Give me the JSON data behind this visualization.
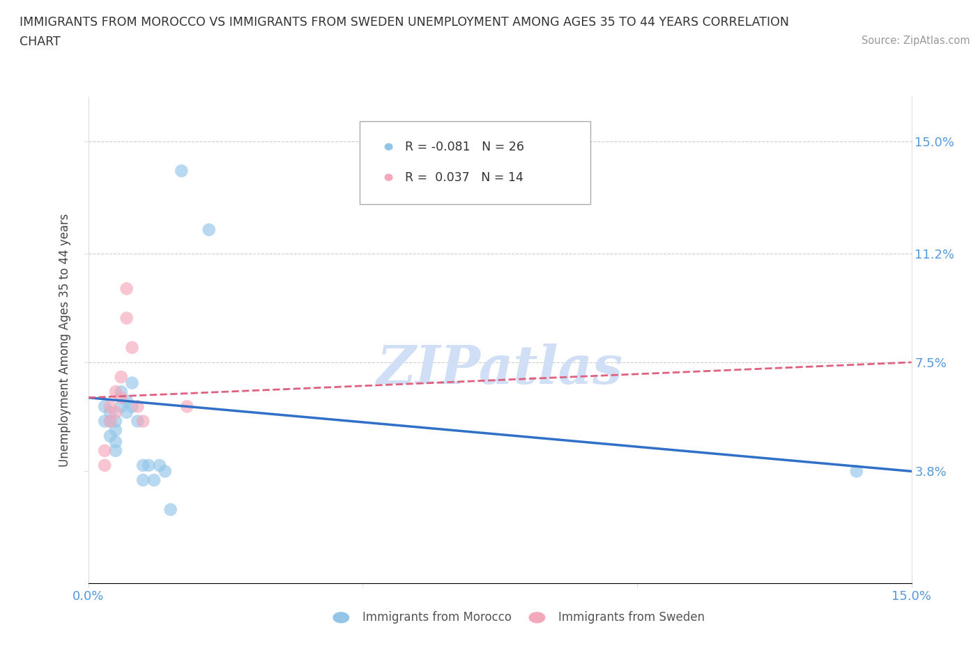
{
  "title_line1": "IMMIGRANTS FROM MOROCCO VS IMMIGRANTS FROM SWEDEN UNEMPLOYMENT AMONG AGES 35 TO 44 YEARS CORRELATION",
  "title_line2": "CHART",
  "source_text": "Source: ZipAtlas.com",
  "ylabel": "Unemployment Among Ages 35 to 44 years",
  "xmin": 0.0,
  "xmax": 0.15,
  "ymin": 0.0,
  "ymax": 0.165,
  "morocco_x": [
    0.003,
    0.003,
    0.004,
    0.004,
    0.004,
    0.005,
    0.005,
    0.005,
    0.005,
    0.006,
    0.006,
    0.007,
    0.007,
    0.008,
    0.008,
    0.009,
    0.01,
    0.01,
    0.011,
    0.012,
    0.013,
    0.014,
    0.015,
    0.017,
    0.022,
    0.14
  ],
  "morocco_y": [
    0.055,
    0.06,
    0.055,
    0.058,
    0.05,
    0.055,
    0.052,
    0.048,
    0.045,
    0.06,
    0.065,
    0.062,
    0.058,
    0.068,
    0.06,
    0.055,
    0.04,
    0.035,
    0.04,
    0.035,
    0.04,
    0.038,
    0.025,
    0.14,
    0.12,
    0.038
  ],
  "sweden_x": [
    0.003,
    0.003,
    0.004,
    0.004,
    0.005,
    0.005,
    0.006,
    0.006,
    0.007,
    0.007,
    0.008,
    0.009,
    0.01,
    0.018
  ],
  "sweden_y": [
    0.045,
    0.04,
    0.06,
    0.055,
    0.065,
    0.058,
    0.07,
    0.063,
    0.09,
    0.1,
    0.08,
    0.06,
    0.055,
    0.06
  ],
  "morocco_color": "#92C5E8",
  "sweden_color": "#F4A8BB",
  "morocco_line_color": "#3070C8",
  "sweden_line_color": "#E06080",
  "morocco_line_y0": 0.063,
  "morocco_line_y1": 0.038,
  "sweden_line_y0": 0.063,
  "sweden_line_y1": 0.075,
  "legend_r_morocco": "R = -0.081",
  "legend_n_morocco": "N = 26",
  "legend_r_sweden": "R =  0.037",
  "legend_n_sweden": "N = 14",
  "legend_label_morocco": "Immigrants from Morocco",
  "legend_label_sweden": "Immigrants from Sweden",
  "background_color": "#ffffff",
  "grid_color": "#cccccc",
  "title_color": "#333333",
  "axis_label_color": "#444444",
  "tick_label_color": "#5599DD",
  "watermark_text": "ZIPatlas",
  "watermark_color": "#d0dff5"
}
